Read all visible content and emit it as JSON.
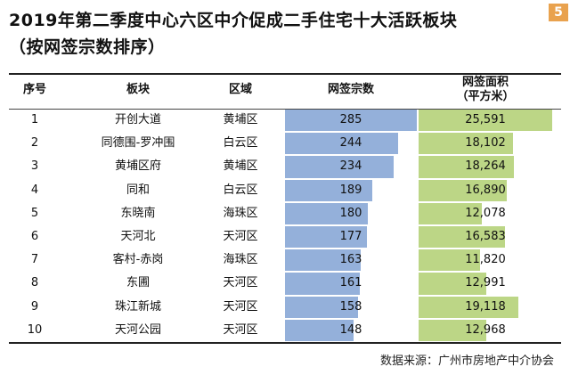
{
  "page_number": "5",
  "title_line1": "2019年第二季度中心六区中介促成二手住宅十大活跃板块",
  "title_line2": "（按网签宗数排序）",
  "headers": {
    "rank": "序号",
    "block": "板块",
    "district": "区域",
    "count": "网签宗数",
    "area_line1": "网签面积",
    "area_line2": "（平方米）"
  },
  "source": "数据来源：广州市房地产中介协会",
  "colors": {
    "count_bar": "#94b0da",
    "area_bar": "#bcd686",
    "badge": "#e9a24e"
  },
  "chart_data": {
    "type": "table",
    "columns": [
      "序号",
      "板块",
      "区域",
      "网签宗数",
      "网签面积（平方米）"
    ],
    "rows": [
      {
        "rank": "1",
        "block": "开创大道",
        "district": "黄埔区",
        "count": 285,
        "count_label": "285",
        "area": 25591,
        "area_label": "25,591"
      },
      {
        "rank": "2",
        "block": "同德围-罗冲围",
        "district": "白云区",
        "count": 244,
        "count_label": "244",
        "area": 18102,
        "area_label": "18,102"
      },
      {
        "rank": "3",
        "block": "黄埔区府",
        "district": "黄埔区",
        "count": 234,
        "count_label": "234",
        "area": 18264,
        "area_label": "18,264"
      },
      {
        "rank": "4",
        "block": "同和",
        "district": "白云区",
        "count": 189,
        "count_label": "189",
        "area": 16890,
        "area_label": "16,890"
      },
      {
        "rank": "5",
        "block": "东晓南",
        "district": "海珠区",
        "count": 180,
        "count_label": "180",
        "area": 12078,
        "area_label": "12,078"
      },
      {
        "rank": "6",
        "block": "天河北",
        "district": "天河区",
        "count": 177,
        "count_label": "177",
        "area": 16583,
        "area_label": "16,583"
      },
      {
        "rank": "7",
        "block": "客村-赤岗",
        "district": "海珠区",
        "count": 163,
        "count_label": "163",
        "area": 11820,
        "area_label": "11,820"
      },
      {
        "rank": "8",
        "block": "东圃",
        "district": "天河区",
        "count": 161,
        "count_label": "161",
        "area": 12991,
        "area_label": "12,991"
      },
      {
        "rank": "9",
        "block": "珠江新城",
        "district": "天河区",
        "count": 158,
        "count_label": "158",
        "area": 19118,
        "area_label": "19,118"
      },
      {
        "rank": "10",
        "block": "天河公园",
        "district": "天河区",
        "count": 148,
        "count_label": "148",
        "area": 12968,
        "area_label": "12,968"
      }
    ]
  }
}
